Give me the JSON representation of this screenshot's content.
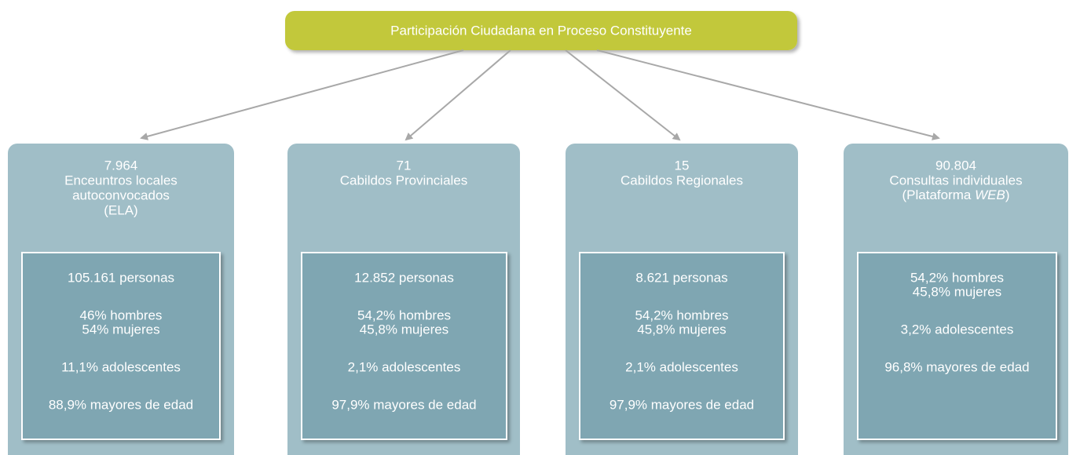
{
  "title": "Participación Ciudadana en Proceso Constituyente",
  "nodes": [
    {
      "count": "7.964",
      "label": [
        "Enceuntros locales",
        "autoconvocados",
        "(ELA)"
      ],
      "stats": [
        [
          "105.161 personas"
        ],
        [
          "46% hombres",
          "54% mujeres"
        ],
        [
          "11,1% adolescentes"
        ],
        [
          "88,9% mayores de edad"
        ]
      ]
    },
    {
      "count": "71",
      "label": [
        "Cabildos Provinciales"
      ],
      "stats": [
        [
          "12.852 personas"
        ],
        [
          "54,2% hombres",
          "45,8% mujeres"
        ],
        [
          "2,1% adolescentes"
        ],
        [
          "97,9% mayores de edad"
        ]
      ]
    },
    {
      "count": "15",
      "label": [
        "Cabildos Regionales"
      ],
      "stats": [
        [
          "8.621 personas"
        ],
        [
          "54,2% hombres",
          "45,8% mujeres"
        ],
        [
          "2,1% adolescentes"
        ],
        [
          "97,9% mayores de edad"
        ]
      ]
    },
    {
      "count": "90.804",
      "label": [
        "Consultas individuales",
        [
          {
            "text": "(Plataforma "
          },
          {
            "text": "WEB",
            "italic": true
          },
          {
            "text": ")"
          }
        ]
      ],
      "stats": [
        [
          "54,2% hombres",
          "45,8% mujeres"
        ],
        [
          "3,2% adolescentes"
        ],
        [
          "96,8% mayores de edad"
        ]
      ]
    }
  ]
}
